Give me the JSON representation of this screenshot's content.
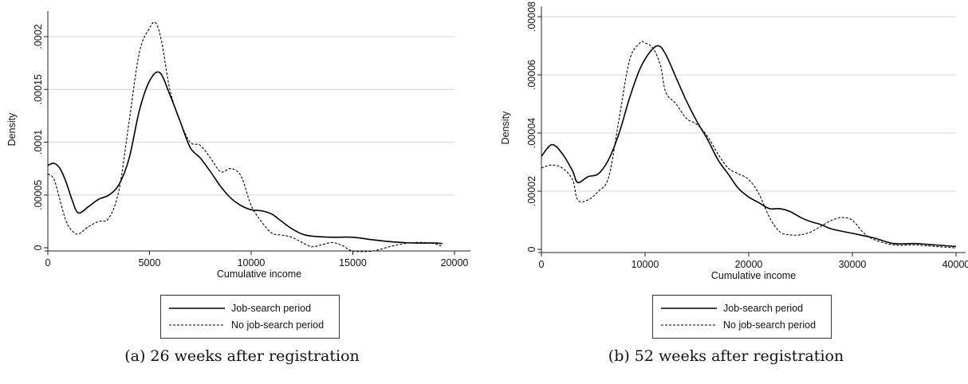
{
  "chart_data": [
    {
      "type": "line",
      "caption": "(a) 26 weeks after registration",
      "xlabel": "Cumulative income",
      "ylabel": "Density",
      "xlim": [
        0,
        20000
      ],
      "ylim": [
        0,
        0.0002
      ],
      "x_ticks": [
        {
          "value": 0,
          "label": "0"
        },
        {
          "value": 5000,
          "label": "5000"
        },
        {
          "value": 10000,
          "label": "10000"
        },
        {
          "value": 15000,
          "label": "15000"
        },
        {
          "value": 20000,
          "label": "20000"
        }
      ],
      "y_ticks": [
        {
          "value": 0,
          "label": "0"
        },
        {
          "value": 5e-05,
          "label": ".00005"
        },
        {
          "value": 0.0001,
          "label": ".0001"
        },
        {
          "value": 0.00015,
          "label": ".00015"
        },
        {
          "value": 0.0002,
          "label": ".0002"
        }
      ],
      "grid": true,
      "legend_position": "bottom",
      "series": [
        {
          "name": "Job-search period",
          "style": "solid",
          "x": [
            0,
            300,
            600,
            900,
            1200,
            1500,
            2000,
            2500,
            3000,
            3500,
            4000,
            4500,
            5000,
            5500,
            6000,
            6500,
            7000,
            7500,
            8000,
            8500,
            9000,
            9500,
            10000,
            10500,
            11000,
            11500,
            12000,
            12500,
            13000,
            14000,
            15000,
            16000,
            17000,
            18000,
            19000,
            19400
          ],
          "y": [
            7.8e-05,
            8e-05,
            7.5e-05,
            6.2e-05,
            4.5e-05,
            3.3e-05,
            3.9e-05,
            4.6e-05,
            5e-05,
            6e-05,
            8.5e-05,
            0.00013,
            0.000158,
            0.000166,
            0.000145,
            0.00012,
            9.5e-05,
            8.5e-05,
            7.2e-05,
            5.8e-05,
            4.7e-05,
            4e-05,
            3.6e-05,
            3.5e-05,
            3.2e-05,
            2.5e-05,
            1.8e-05,
            1.3e-05,
            1.1e-05,
            1e-05,
            1e-05,
            7.5e-06,
            5.5e-06,
            4.5e-06,
            4.5e-06,
            4e-06
          ]
        },
        {
          "name": "No job-search period",
          "style": "dashed",
          "x": [
            0,
            300,
            600,
            900,
            1200,
            1500,
            2000,
            2500,
            3000,
            3500,
            4000,
            4500,
            5000,
            5300,
            5600,
            6000,
            6500,
            7000,
            7500,
            8000,
            8500,
            9000,
            9500,
            10000,
            10500,
            11000,
            11500,
            12000,
            12500,
            13000,
            13500,
            14000,
            14500,
            15000,
            16000,
            17000,
            18000,
            19000,
            19400
          ],
          "y": [
            7e-05,
            6.5e-05,
            4.5e-05,
            2.5e-05,
            1.6e-05,
            1.3e-05,
            2e-05,
            2.5e-05,
            2.8e-05,
            5.5e-05,
            0.00012,
            0.000185,
            0.000208,
            0.000213,
            0.000195,
            0.00015,
            0.00012,
            0.0001,
            9.7e-05,
            8.5e-05,
            7.2e-05,
            7.5e-05,
            6.8e-05,
            4e-05,
            2.5e-05,
            1.4e-05,
            1.2e-05,
            1e-05,
            5e-06,
            1e-06,
            3e-06,
            5e-06,
            2e-06,
            -3e-06,
            -3e-06,
            2e-06,
            5e-06,
            4e-06,
            1e-06
          ]
        }
      ]
    },
    {
      "type": "line",
      "caption": "(b) 52 weeks after registration",
      "xlabel": "Cumulative income",
      "ylabel": "Density",
      "xlim": [
        0,
        40000
      ],
      "ylim": [
        0,
        8e-05
      ],
      "x_ticks": [
        {
          "value": 0,
          "label": "0"
        },
        {
          "value": 10000,
          "label": "10000"
        },
        {
          "value": 20000,
          "label": "20000"
        },
        {
          "value": 30000,
          "label": "30000"
        },
        {
          "value": 40000,
          "label": "40000"
        }
      ],
      "y_ticks": [
        {
          "value": 0,
          "label": "0"
        },
        {
          "value": 2e-05,
          "label": ".00002"
        },
        {
          "value": 4e-05,
          "label": ".00004"
        },
        {
          "value": 6e-05,
          "label": ".00006"
        },
        {
          "value": 8e-05,
          "label": ".00008"
        }
      ],
      "grid": true,
      "legend_position": "bottom",
      "series": [
        {
          "name": "Job-search period",
          "style": "solid",
          "x": [
            0,
            1000,
            2000,
            3000,
            3500,
            4500,
            5500,
            6500,
            7500,
            8500,
            9500,
            10500,
            11300,
            12000,
            13000,
            14000,
            15000,
            16000,
            17000,
            18000,
            19000,
            20000,
            21000,
            22000,
            23000,
            24000,
            25000,
            26000,
            27000,
            28000,
            30000,
            32000,
            34000,
            36000,
            38000,
            40000
          ],
          "y": [
            3.2e-05,
            3.6e-05,
            3.3e-05,
            2.7e-05,
            2.3e-05,
            2.5e-05,
            2.6e-05,
            3.1e-05,
            4e-05,
            5.2e-05,
            6.2e-05,
            6.8e-05,
            7e-05,
            6.7e-05,
            5.9e-05,
            5.1e-05,
            4.4e-05,
            3.8e-05,
            3.1e-05,
            2.6e-05,
            2.1e-05,
            1.8e-05,
            1.6e-05,
            1.4e-05,
            1.4e-05,
            1.3e-05,
            1.1e-05,
            9.5e-06,
            8.5e-06,
            7e-06,
            5.5e-06,
            4e-06,
            2e-06,
            2e-06,
            1.5e-06,
            1e-06
          ]
        },
        {
          "name": "No job-search period",
          "style": "dashed",
          "x": [
            0,
            1000,
            2000,
            3000,
            3500,
            4500,
            5500,
            6500,
            7500,
            8500,
            9500,
            10000,
            10800,
            11500,
            12000,
            13000,
            14000,
            15000,
            16000,
            17000,
            18000,
            19000,
            20000,
            21000,
            22000,
            23000,
            24000,
            25000,
            26000,
            27000,
            28000,
            29000,
            30000,
            31000,
            32000,
            34000,
            36000,
            38000,
            40000
          ],
          "y": [
            2.8e-05,
            2.9e-05,
            2.8e-05,
            2.4e-05,
            1.7e-05,
            1.7e-05,
            2e-05,
            2.5e-05,
            4.5e-05,
            6.5e-05,
            7.1e-05,
            7.1e-05,
            6.9e-05,
            6.3e-05,
            5.4e-05,
            5e-05,
            4.5e-05,
            4.3e-05,
            3.9e-05,
            3.3e-05,
            2.8e-05,
            2.6e-05,
            2.4e-05,
            1.9e-05,
            1.1e-05,
            6e-06,
            5e-06,
            5e-06,
            6e-06,
            8e-06,
            1e-05,
            1.1e-05,
            1e-05,
            6e-06,
            3.5e-06,
            1.5e-06,
            1.5e-06,
            1e-06,
            5e-07
          ]
        }
      ]
    }
  ]
}
